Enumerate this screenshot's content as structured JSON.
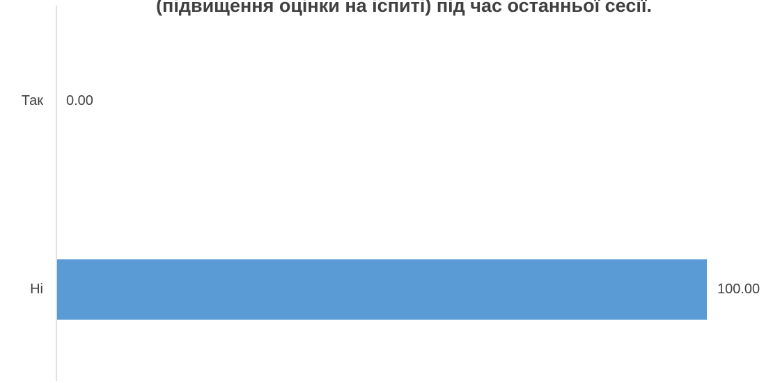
{
  "chart_data": {
    "type": "barh",
    "title": "(підвищення оцінки на іспиті) під час останньої сесії.",
    "categories": [
      "Так",
      "Ні"
    ],
    "values": [
      0,
      100
    ],
    "value_labels": [
      "0.00",
      "100.00"
    ],
    "color": "#5b9bd5",
    "xlim": [
      0,
      100
    ]
  }
}
